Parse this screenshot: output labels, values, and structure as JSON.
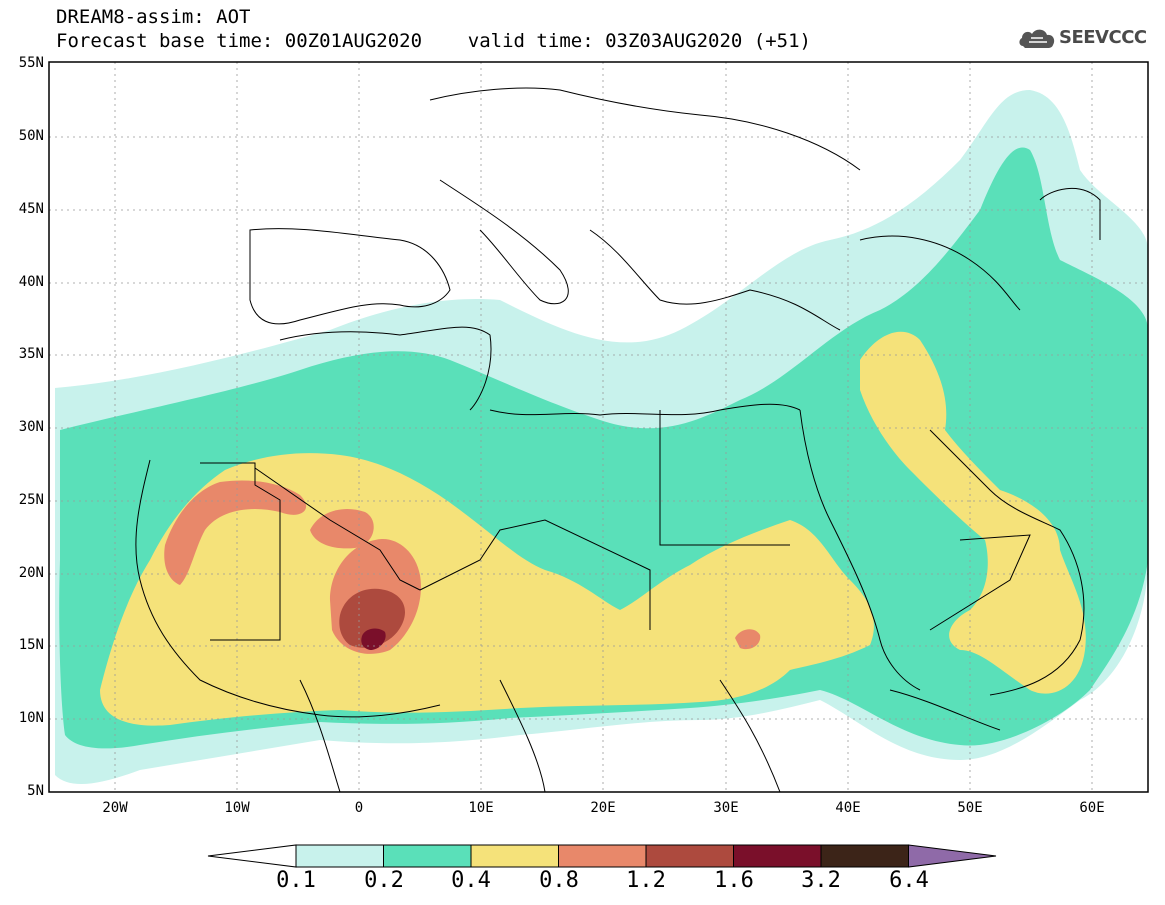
{
  "title": {
    "line1": "DREAM8-assim: AOT",
    "line2": "Forecast base time: 00Z01AUG2020    valid time: 03Z03AUG2020 (+51)"
  },
  "logo": {
    "text": "SEEVCCC",
    "icon": "cloud-icon"
  },
  "map": {
    "projection": "lat-lon",
    "lon_range": [
      -25,
      65
    ],
    "lat_range": [
      5,
      55
    ],
    "grid": true,
    "lat_labels": [
      "55N",
      "50N",
      "45N",
      "40N",
      "35N",
      "30N",
      "25N",
      "20N",
      "15N",
      "10N",
      "5N"
    ],
    "lon_labels": [
      "20W",
      "10W",
      "0",
      "10E",
      "20E",
      "30E",
      "40E",
      "50E",
      "60E"
    ]
  },
  "colorbar": {
    "levels": [
      "0.1",
      "0.2",
      "0.4",
      "0.8",
      "1.2",
      "1.6",
      "3.2",
      "6.4"
    ],
    "colors": [
      "#c8f2ec",
      "#5ae0b9",
      "#f5e27a",
      "#e8886a",
      "#ad4a3e",
      "#7a0f2a",
      "#3c2418",
      "#8f6aa8"
    ]
  },
  "colors": {
    "lev1": "#c8f2ec",
    "lev2": "#5ae0b9",
    "lev3": "#f5e27a",
    "lev4": "#e8886a",
    "lev5": "#ad4a3e",
    "lev6": "#7a0f2a"
  }
}
